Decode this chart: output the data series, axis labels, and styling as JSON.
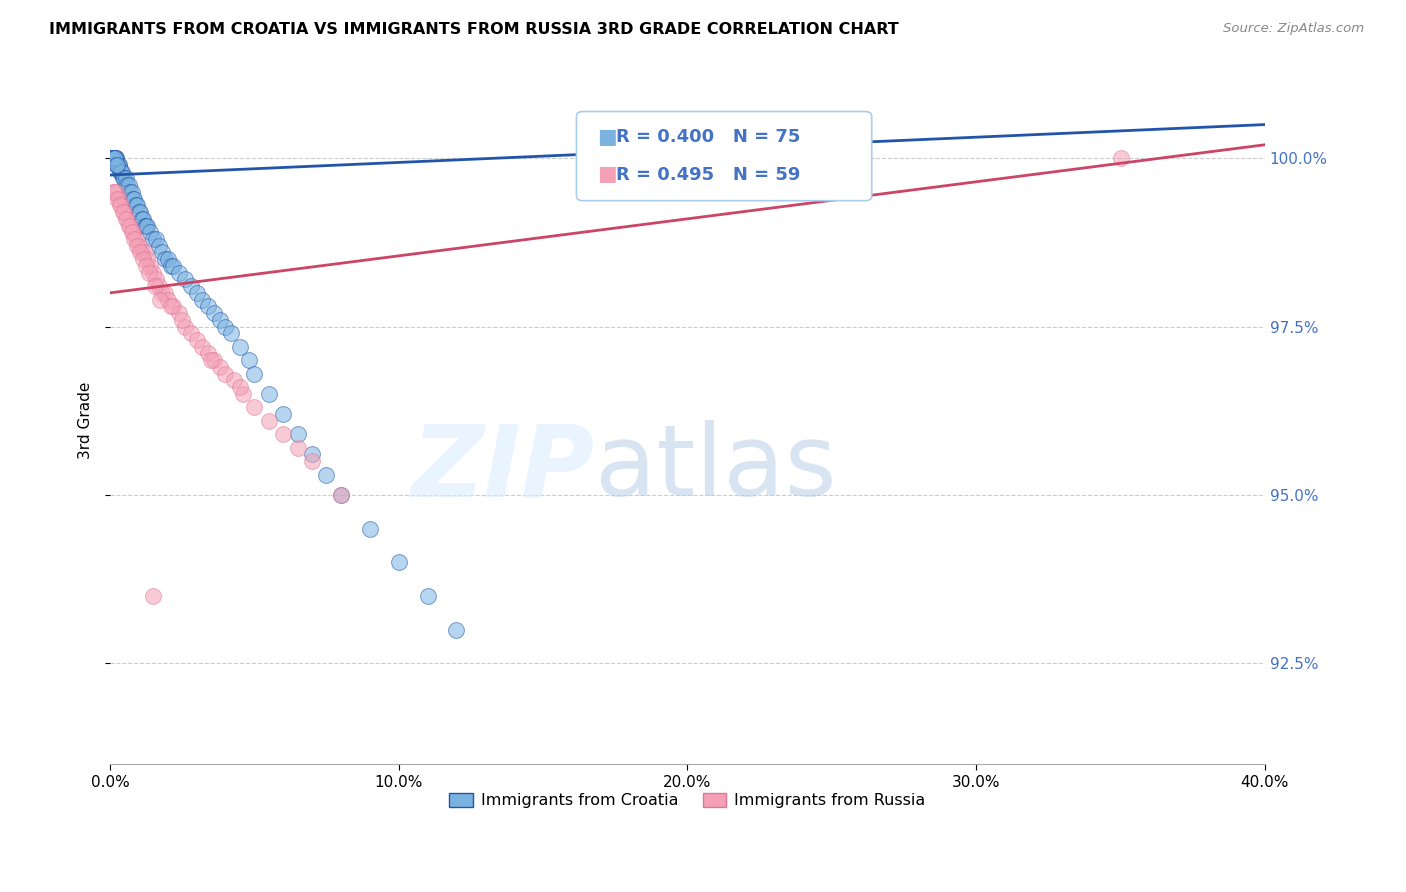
{
  "title": "IMMIGRANTS FROM CROATIA VS IMMIGRANTS FROM RUSSIA 3RD GRADE CORRELATION CHART",
  "source": "Source: ZipAtlas.com",
  "ylabel_left": "3rd Grade",
  "x_min": 0.0,
  "x_max": 40.0,
  "y_min": 91.0,
  "y_max": 101.2,
  "y_ticks": [
    92.5,
    95.0,
    97.5,
    100.0
  ],
  "y_tick_labels": [
    "92.5%",
    "95.0%",
    "97.5%",
    "100.0%"
  ],
  "x_ticks": [
    0.0,
    10.0,
    20.0,
    30.0,
    40.0
  ],
  "x_tick_labels": [
    "0.0%",
    "10.0%",
    "20.0%",
    "30.0%",
    "40.0%"
  ],
  "legend_croatia": "Immigrants from Croatia",
  "legend_russia": "Immigrants from Russia",
  "R_croatia": 0.4,
  "N_croatia": 75,
  "R_russia": 0.495,
  "N_russia": 59,
  "color_croatia": "#7ab3e0",
  "color_russia": "#f4a0b5",
  "color_trendline_croatia": "#2255aa",
  "color_trendline_russia": "#cc4466",
  "color_ytick_labels": "#4472c4",
  "scatter_size": 130,
  "scatter_alpha": 0.55,
  "croatia_x": [
    0.05,
    0.08,
    0.1,
    0.12,
    0.14,
    0.15,
    0.16,
    0.18,
    0.2,
    0.22,
    0.25,
    0.28,
    0.3,
    0.32,
    0.35,
    0.38,
    0.4,
    0.42,
    0.45,
    0.5,
    0.55,
    0.6,
    0.65,
    0.7,
    0.75,
    0.8,
    0.85,
    0.9,
    0.95,
    1.0,
    1.05,
    1.1,
    1.15,
    1.2,
    1.25,
    1.3,
    1.4,
    1.5,
    1.6,
    1.7,
    1.8,
    1.9,
    2.0,
    2.1,
    2.2,
    2.4,
    2.6,
    2.8,
    3.0,
    3.2,
    3.4,
    3.6,
    3.8,
    4.0,
    4.2,
    4.5,
    4.8,
    5.0,
    5.5,
    6.0,
    6.5,
    7.0,
    7.5,
    8.0,
    9.0,
    10.0,
    11.0,
    12.0,
    0.06,
    0.09,
    0.11,
    0.13,
    0.17,
    0.21,
    0.23
  ],
  "croatia_y": [
    100.0,
    100.0,
    100.0,
    100.0,
    100.0,
    100.0,
    100.0,
    100.0,
    100.0,
    100.0,
    99.9,
    99.9,
    99.9,
    99.9,
    99.8,
    99.8,
    99.8,
    99.8,
    99.7,
    99.7,
    99.7,
    99.6,
    99.6,
    99.5,
    99.5,
    99.4,
    99.4,
    99.3,
    99.3,
    99.2,
    99.2,
    99.1,
    99.1,
    99.0,
    99.0,
    99.0,
    98.9,
    98.8,
    98.8,
    98.7,
    98.6,
    98.5,
    98.5,
    98.4,
    98.4,
    98.3,
    98.2,
    98.1,
    98.0,
    97.9,
    97.8,
    97.7,
    97.6,
    97.5,
    97.4,
    97.2,
    97.0,
    96.8,
    96.5,
    96.2,
    95.9,
    95.6,
    95.3,
    95.0,
    94.5,
    94.0,
    93.5,
    93.0,
    100.0,
    100.0,
    100.0,
    100.0,
    100.0,
    99.9,
    99.9
  ],
  "russia_x": [
    0.1,
    0.2,
    0.3,
    0.4,
    0.5,
    0.6,
    0.7,
    0.8,
    0.9,
    1.0,
    1.1,
    1.2,
    1.3,
    1.4,
    1.5,
    1.6,
    1.7,
    1.8,
    1.9,
    2.0,
    2.2,
    2.4,
    2.6,
    2.8,
    3.0,
    3.2,
    3.4,
    3.6,
    3.8,
    4.0,
    4.3,
    4.6,
    5.0,
    5.5,
    6.0,
    6.5,
    7.0,
    8.0,
    0.15,
    0.25,
    0.35,
    0.45,
    0.55,
    0.65,
    0.75,
    0.85,
    0.95,
    1.05,
    1.15,
    1.25,
    1.35,
    1.55,
    1.75,
    2.1,
    2.5,
    3.5,
    4.5,
    35.0,
    1.5
  ],
  "russia_y": [
    99.5,
    99.5,
    99.4,
    99.3,
    99.2,
    99.1,
    99.0,
    98.9,
    98.8,
    98.7,
    98.6,
    98.6,
    98.5,
    98.4,
    98.3,
    98.2,
    98.1,
    98.0,
    98.0,
    97.9,
    97.8,
    97.7,
    97.5,
    97.4,
    97.3,
    97.2,
    97.1,
    97.0,
    96.9,
    96.8,
    96.7,
    96.5,
    96.3,
    96.1,
    95.9,
    95.7,
    95.5,
    95.0,
    99.5,
    99.4,
    99.3,
    99.2,
    99.1,
    99.0,
    98.9,
    98.8,
    98.7,
    98.6,
    98.5,
    98.4,
    98.3,
    98.1,
    97.9,
    97.8,
    97.6,
    97.0,
    96.6,
    100.0,
    93.5
  ],
  "trendline_croatia_x0": 0.0,
  "trendline_croatia_y0": 99.75,
  "trendline_croatia_x1": 40.0,
  "trendline_croatia_y1": 100.5,
  "trendline_russia_x0": 0.0,
  "trendline_russia_y0": 98.0,
  "trendline_russia_x1": 40.0,
  "trendline_russia_y1": 100.2
}
